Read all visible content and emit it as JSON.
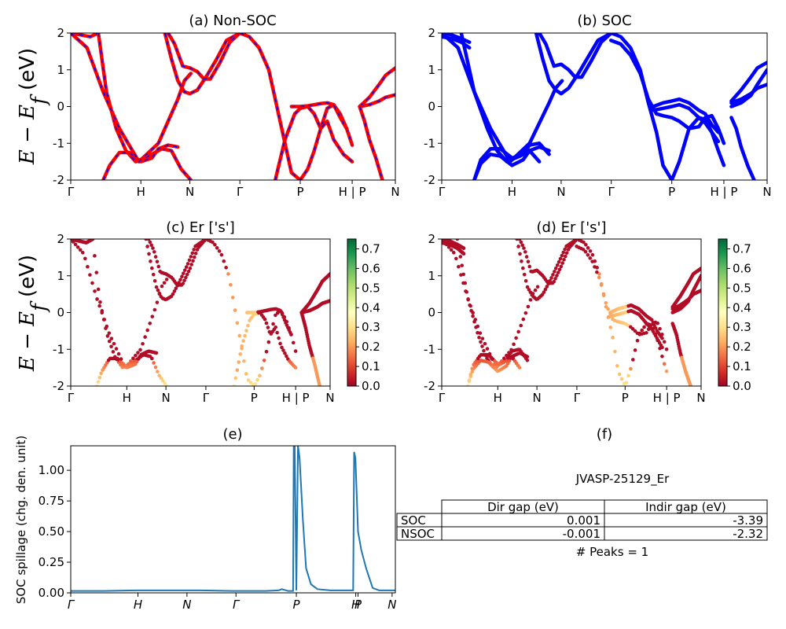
{
  "figure": {
    "ylabel_band_main": "E − E",
    "ylabel_band_sub": "f",
    "ylabel_band_unit": " (eV)"
  },
  "chart_data": [
    {
      "id": "a",
      "type": "line",
      "title": "(a) Non-SOC",
      "ylim": [
        -2,
        2
      ],
      "yticks": [
        -2,
        -1,
        0,
        1,
        2
      ],
      "xticks": [
        "Γ",
        "H",
        "N",
        "Γ",
        "P",
        "H | P",
        "N"
      ],
      "xtick_pos": [
        0,
        0.216,
        0.367,
        0.521,
        0.707,
        0.867,
        1.0
      ],
      "colors": {
        "line": "#ff0000",
        "dash": "#0000ff"
      },
      "series": [
        {
          "x": [
            0,
            0.03,
            0.06,
            0.085
          ],
          "y": [
            2.0,
            1.95,
            1.9,
            2.0
          ]
        },
        {
          "x": [
            0.085,
            0.11,
            0.14,
            0.17,
            0.2,
            0.24,
            0.28,
            0.31,
            0.34,
            0.37
          ],
          "y": [
            2.0,
            0.4,
            -0.6,
            -1.2,
            -1.5,
            -1.35,
            -1.15,
            -1.2,
            -1.7,
            -2.0
          ]
        },
        {
          "x": [
            0.1,
            0.12,
            0.15,
            0.18,
            0.216,
            0.25,
            0.27,
            0.3,
            0.33
          ],
          "y": [
            -2.0,
            -1.6,
            -1.25,
            -1.25,
            -1.5,
            -1.4,
            -1.15,
            -1.05,
            -1.1
          ]
        },
        {
          "x": [
            0.0,
            0.05,
            0.1,
            0.15,
            0.21,
            0.27,
            0.33,
            0.35,
            0.37
          ],
          "y": [
            2.0,
            1.6,
            0.4,
            -0.6,
            -1.5,
            -1.0,
            0.2,
            0.7,
            0.9
          ]
        },
        {
          "x": [
            0.29,
            0.31,
            0.33,
            0.35,
            0.367,
            0.39,
            0.42,
            0.45,
            0.48,
            0.521
          ],
          "y": [
            2.0,
            1.3,
            0.7,
            0.4,
            0.35,
            0.45,
            0.85,
            1.3,
            1.8,
            2.0
          ]
        },
        {
          "x": [
            0.3,
            0.32,
            0.345,
            0.367,
            0.39,
            0.41,
            0.43,
            0.46,
            0.49,
            0.521
          ],
          "y": [
            2.0,
            1.7,
            1.1,
            1.05,
            0.95,
            0.75,
            0.75,
            1.2,
            1.75,
            2.0
          ]
        },
        {
          "x": [
            0.521,
            0.55,
            0.58,
            0.61,
            0.635,
            0.66,
            0.68,
            0.707,
            0.73,
            0.75,
            0.77,
            0.79,
            0.81,
            0.83,
            0.85,
            0.867
          ],
          "y": [
            2.0,
            1.9,
            1.6,
            1.0,
            0.0,
            -1.0,
            -1.8,
            -2.0,
            -1.7,
            -1.2,
            -0.6,
            -0.05,
            0.05,
            -0.2,
            -0.6,
            -1.05
          ]
        },
        {
          "x": [
            0.63,
            0.66,
            0.69,
            0.707,
            0.73,
            0.75,
            0.77,
            0.79,
            0.81,
            0.84,
            0.867
          ],
          "y": [
            -2.0,
            -0.9,
            -0.2,
            -0.05,
            0.0,
            -0.2,
            -0.6,
            -0.4,
            -0.9,
            -1.3,
            -1.5
          ]
        },
        {
          "x": [
            0.68,
            0.707,
            0.73,
            0.75,
            0.77,
            0.79,
            0.81,
            0.83,
            0.85
          ],
          "y": [
            0.0,
            0.0,
            0.02,
            0.05,
            0.08,
            0.1,
            0.05,
            -0.3,
            -0.6
          ]
        },
        {
          "x": [
            0.89,
            0.92,
            0.95,
            0.97,
            1.0
          ],
          "y": [
            0.0,
            0.05,
            0.15,
            0.25,
            0.32
          ]
        },
        {
          "x": [
            0.89,
            0.92,
            0.95,
            0.97,
            1.0
          ],
          "y": [
            0.0,
            0.25,
            0.6,
            0.85,
            1.05
          ]
        },
        {
          "x": [
            0.89,
            0.905,
            0.92,
            0.94,
            0.96
          ],
          "y": [
            0.0,
            -0.4,
            -0.9,
            -1.4,
            -2.0
          ]
        }
      ]
    },
    {
      "id": "b",
      "type": "line",
      "title": "(b) SOC",
      "ylim": [
        -2,
        2
      ],
      "yticks": [
        -2,
        -1,
        0,
        1,
        2
      ],
      "xticks": [
        "Γ",
        "H",
        "N",
        "Γ",
        "P",
        "H | P",
        "N"
      ],
      "xtick_pos": [
        0,
        0.216,
        0.367,
        0.521,
        0.707,
        0.867,
        1.0
      ],
      "colors": {
        "line": "#0000ff"
      },
      "series": [
        {
          "x": [
            0,
            0.03,
            0.06,
            0.085
          ],
          "y": [
            1.9,
            1.85,
            1.75,
            1.6
          ]
        },
        {
          "x": [
            0,
            0.03,
            0.06,
            0.085
          ],
          "y": [
            2.0,
            1.95,
            1.85,
            1.75
          ]
        },
        {
          "x": [
            0.06,
            0.1,
            0.14,
            0.17,
            0.2,
            0.24,
            0.27,
            0.3
          ],
          "y": [
            2.0,
            0.4,
            -0.6,
            -1.2,
            -1.5,
            -1.35,
            -1.2,
            -1.5
          ]
        },
        {
          "x": [
            0.1,
            0.12,
            0.15,
            0.18,
            0.216,
            0.25,
            0.27,
            0.3,
            0.33
          ],
          "y": [
            -2.0,
            -1.55,
            -1.3,
            -1.35,
            -1.6,
            -1.45,
            -1.2,
            -1.1,
            -1.2
          ]
        },
        {
          "x": [
            0.1,
            0.12,
            0.15,
            0.18,
            0.216,
            0.25,
            0.27,
            0.3,
            0.33
          ],
          "y": [
            -2.0,
            -1.45,
            -1.15,
            -1.15,
            -1.4,
            -1.3,
            -1.05,
            -1.0,
            -1.3
          ]
        },
        {
          "x": [
            0.0,
            0.05,
            0.1,
            0.15,
            0.21,
            0.27,
            0.33,
            0.35,
            0.37
          ],
          "y": [
            2.0,
            1.6,
            0.4,
            -0.6,
            -1.5,
            -1.0,
            0.1,
            0.5,
            0.7
          ]
        },
        {
          "x": [
            0.29,
            0.31,
            0.33,
            0.35,
            0.367,
            0.39,
            0.42,
            0.45,
            0.48,
            0.521
          ],
          "y": [
            2.0,
            1.3,
            0.7,
            0.45,
            0.35,
            0.5,
            0.9,
            1.35,
            1.8,
            2.0
          ]
        },
        {
          "x": [
            0.3,
            0.32,
            0.345,
            0.367,
            0.39,
            0.41,
            0.43,
            0.46,
            0.49,
            0.521
          ],
          "y": [
            2.0,
            1.7,
            1.1,
            1.15,
            1.0,
            0.8,
            0.8,
            1.25,
            1.75,
            2.0
          ]
        },
        {
          "x": [
            0.521,
            0.55,
            0.58,
            0.61,
            0.635,
            0.66,
            0.68,
            0.707,
            0.73,
            0.76,
            0.79,
            0.81,
            0.83,
            0.85,
            0.867
          ],
          "y": [
            2.0,
            1.9,
            1.6,
            1.0,
            0.1,
            -0.7,
            -1.6,
            -2.0,
            -1.5,
            -0.6,
            -0.3,
            -0.35,
            -0.7,
            -1.2,
            -1.6
          ]
        },
        {
          "x": [
            0.52,
            0.55,
            0.58,
            0.61,
            0.635,
            0.66,
            0.68,
            0.707,
            0.73,
            0.76,
            0.79,
            0.81,
            0.83,
            0.85,
            0.867
          ],
          "y": [
            1.8,
            1.7,
            1.4,
            0.9,
            0.2,
            -0.2,
            -0.25,
            -0.3,
            -0.4,
            -0.6,
            -0.55,
            -0.3,
            -0.25,
            -0.6,
            -1.0
          ]
        },
        {
          "x": [
            0.65,
            0.68,
            0.707,
            0.73,
            0.76,
            0.79,
            0.81,
            0.83,
            0.85
          ],
          "y": [
            0.0,
            0.1,
            0.15,
            0.2,
            0.1,
            -0.1,
            -0.2,
            -0.5,
            -0.7
          ]
        },
        {
          "x": [
            0.65,
            0.68,
            0.707,
            0.73,
            0.76,
            0.79,
            0.81,
            0.83,
            0.85
          ],
          "y": [
            -0.1,
            -0.05,
            0.0,
            0.05,
            -0.05,
            -0.3,
            -0.45,
            -0.7,
            -0.95
          ]
        },
        {
          "x": [
            0.89,
            0.92,
            0.95,
            0.97,
            1.0
          ],
          "y": [
            0.1,
            0.2,
            0.35,
            0.5,
            0.6
          ]
        },
        {
          "x": [
            0.89,
            0.92,
            0.95,
            0.97,
            1.0
          ],
          "y": [
            0.0,
            0.1,
            0.3,
            0.6,
            1.0
          ]
        },
        {
          "x": [
            0.89,
            0.92,
            0.95,
            0.97,
            1.0
          ],
          "y": [
            0.15,
            0.45,
            0.8,
            1.05,
            1.2
          ]
        },
        {
          "x": [
            0.89,
            0.905,
            0.92,
            0.94,
            0.96
          ],
          "y": [
            -0.3,
            -0.6,
            -1.1,
            -1.6,
            -2.0
          ]
        }
      ]
    },
    {
      "id": "c",
      "type": "scatter",
      "title": "(c)  Er ['s']",
      "ylim": [
        -2,
        2
      ],
      "yticks": [
        -2,
        -1,
        0,
        1,
        2
      ],
      "xticks": [
        "Γ",
        "H",
        "N",
        "Γ",
        "P",
        "H | P",
        "N"
      ],
      "xtick_pos": [
        0,
        0.216,
        0.367,
        0.521,
        0.707,
        0.867,
        1.0
      ],
      "colorbar": {
        "min": 0.0,
        "max": 0.75,
        "ticks": [
          "0.0",
          "0.1",
          "0.2",
          "0.3",
          "0.4",
          "0.5",
          "0.6",
          "0.7"
        ]
      }
    },
    {
      "id": "d",
      "type": "scatter",
      "title": "(d) Er ['s']",
      "ylim": [
        -2,
        2
      ],
      "yticks": [
        -2,
        -1,
        0,
        1,
        2
      ],
      "xticks": [
        "Γ",
        "H",
        "N",
        "Γ",
        "P",
        "H | P",
        "N"
      ],
      "xtick_pos": [
        0,
        0.216,
        0.367,
        0.521,
        0.707,
        0.867,
        1.0
      ],
      "colorbar": {
        "min": 0.0,
        "max": 0.75,
        "ticks": [
          "0.0",
          "0.1",
          "0.2",
          "0.3",
          "0.4",
          "0.5",
          "0.6",
          "0.7"
        ]
      }
    },
    {
      "id": "e",
      "type": "line",
      "title": "(e)",
      "ylabel": "SOC spillage (chg. den. unit)",
      "ylim": [
        0,
        1.2
      ],
      "yticks": [
        "0.00",
        "0.25",
        "0.50",
        "0.75",
        "1.00"
      ],
      "ytick_vals": [
        0,
        0.25,
        0.5,
        0.75,
        1.0
      ],
      "xticks": [
        "Γ",
        "H",
        "N",
        "Γ",
        "P",
        "H",
        "P",
        "N"
      ],
      "xtick_pos": [
        0,
        0.207,
        0.358,
        0.509,
        0.695,
        0.878,
        0.885,
        0.99
      ],
      "colors": {
        "line": "#1f77b4"
      },
      "x": [
        0,
        0.1,
        0.2,
        0.3,
        0.4,
        0.5,
        0.6,
        0.64,
        0.65,
        0.67,
        0.685,
        0.687,
        0.69,
        0.695,
        0.7,
        0.705,
        0.715,
        0.725,
        0.74,
        0.76,
        0.8,
        0.85,
        0.87,
        0.873,
        0.877,
        0.885,
        0.895,
        0.91,
        0.93,
        0.95,
        1.0
      ],
      "y": [
        0.015,
        0.015,
        0.02,
        0.02,
        0.02,
        0.015,
        0.015,
        0.02,
        0.03,
        0.015,
        0.015,
        1.2,
        1.2,
        0.02,
        1.2,
        1.1,
        0.6,
        0.2,
        0.07,
        0.03,
        0.02,
        0.02,
        0.02,
        1.15,
        1.1,
        0.5,
        0.35,
        0.2,
        0.04,
        0.02,
        0.02
      ]
    },
    {
      "id": "f",
      "type": "table",
      "title": "(f)",
      "caption": "JVASP-25129_Er",
      "columns": [
        "Dir gap (eV)",
        "Indir gap (eV)"
      ],
      "rows": [
        {
          "label": "SOC",
          "values": [
            "0.001",
            "-3.39"
          ]
        },
        {
          "label": "NSOC",
          "values": [
            "-0.001",
            "-2.32"
          ]
        }
      ],
      "footer": "# Peaks = 1"
    }
  ]
}
